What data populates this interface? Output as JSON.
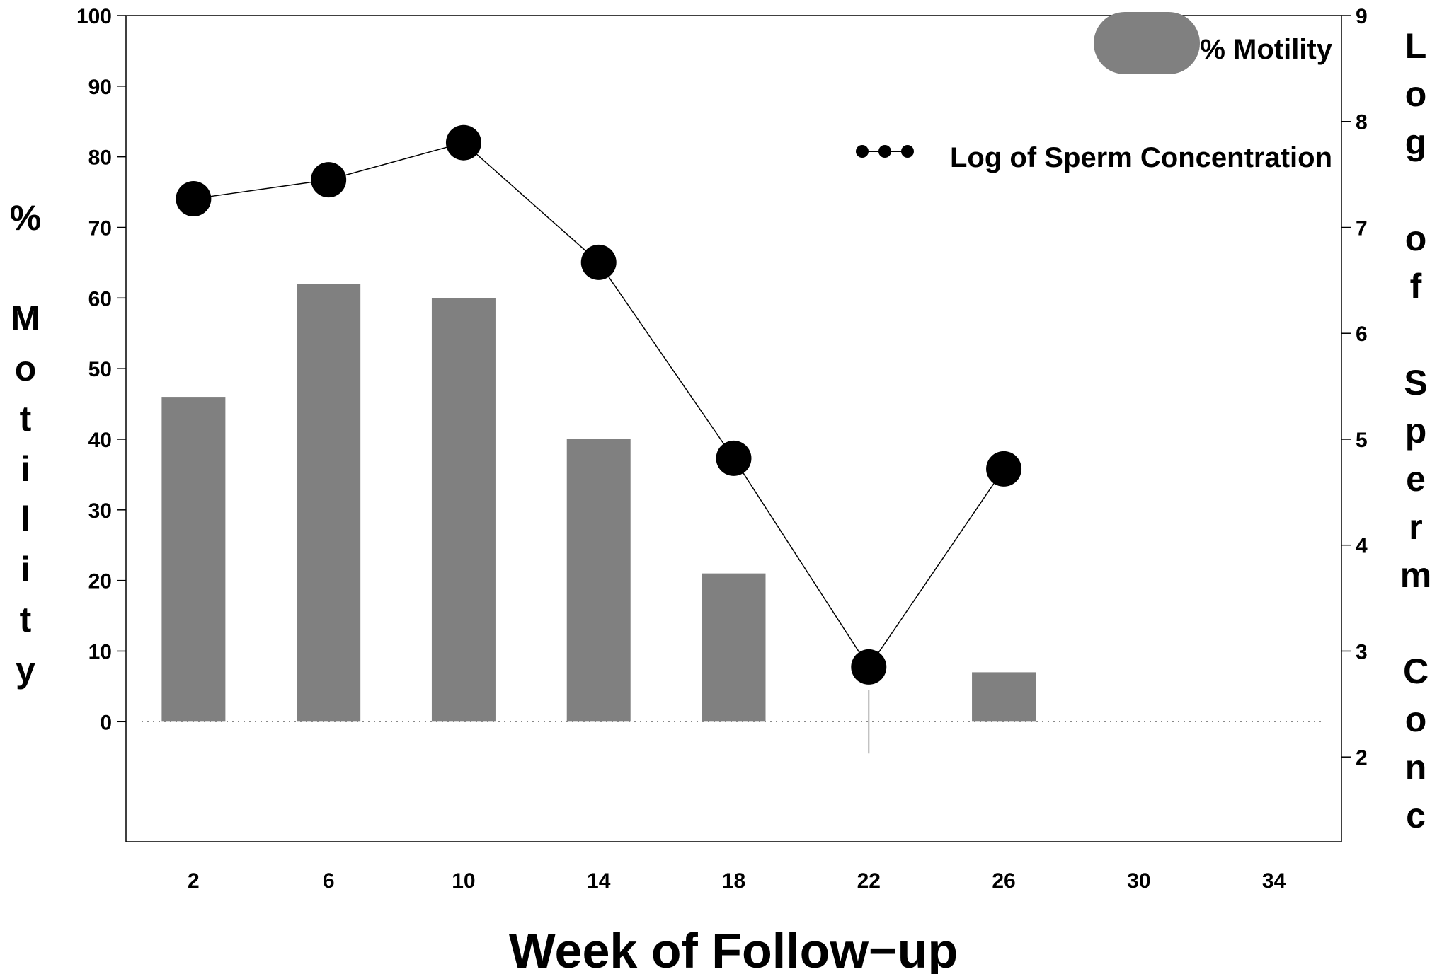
{
  "chart_data": {
    "type": "bar",
    "xlabel": "Week of Follow−up",
    "ylabel": "% Motility",
    "y2label": "Log of Sperm Conc",
    "x_ticks": [
      2,
      6,
      10,
      14,
      18,
      22,
      26,
      30,
      34
    ],
    "xlim": [
      0,
      36
    ],
    "ylim": [
      -17,
      100
    ],
    "y_ticks": [
      0,
      10,
      20,
      30,
      40,
      50,
      60,
      70,
      80,
      90,
      100
    ],
    "y2lim": [
      1.2,
      9
    ],
    "y2_ticks": [
      2,
      3,
      4,
      5,
      6,
      7,
      8,
      9
    ],
    "legend_position": "top-right",
    "grid": false,
    "series": [
      {
        "name": "% Motility",
        "type": "bar",
        "axis": "left",
        "color": "#808080",
        "x": [
          2,
          6,
          10,
          14,
          18,
          26
        ],
        "values": [
          46,
          62,
          60,
          40,
          21,
          7
        ]
      },
      {
        "name": "Log of Sperm Concentration",
        "type": "line",
        "axis": "right",
        "color": "#000000",
        "x": [
          2,
          6,
          10,
          14,
          18,
          22,
          26
        ],
        "values": [
          7.27,
          7.45,
          7.8,
          6.67,
          4.82,
          2.85,
          4.72
        ]
      }
    ]
  }
}
